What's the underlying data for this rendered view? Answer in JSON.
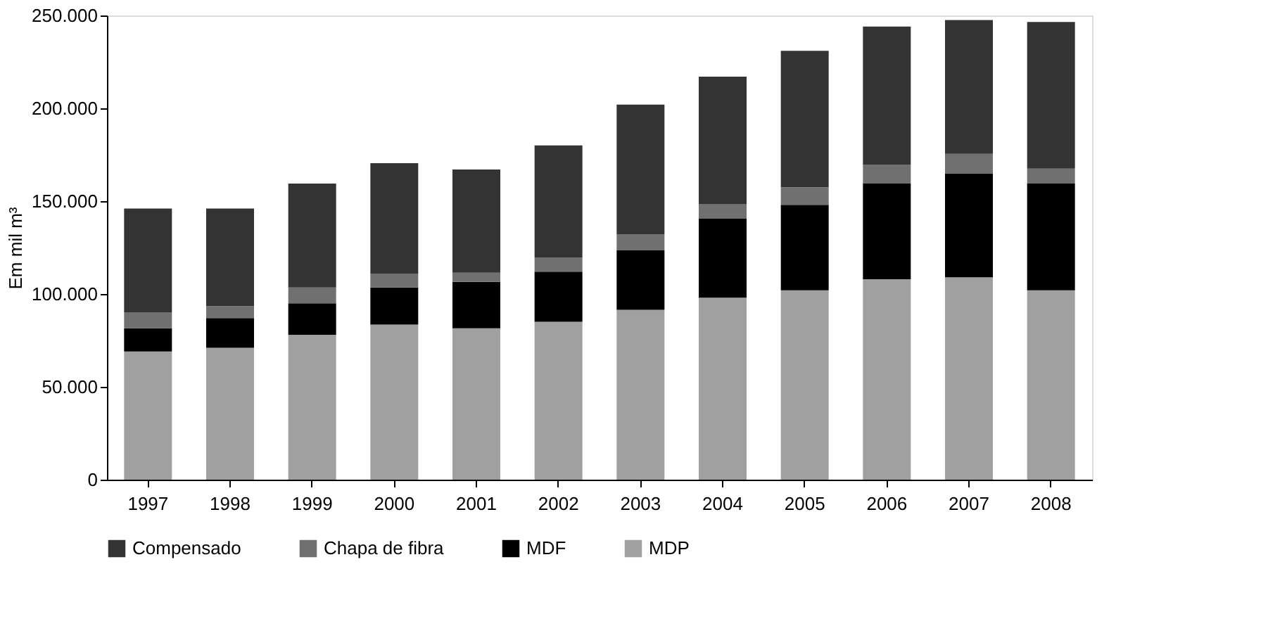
{
  "chart_data": {
    "type": "bar",
    "stacked": true,
    "ylabel": "Em mil m³",
    "categories": [
      "1997",
      "1998",
      "1999",
      "2000",
      "2001",
      "2002",
      "2003",
      "2004",
      "2005",
      "2006",
      "2007",
      "2008"
    ],
    "series": [
      {
        "name": "MDP",
        "color": "#a0a0a0",
        "values": [
          69000,
          71000,
          78000,
          83500,
          81500,
          85000,
          91500,
          98000,
          102000,
          108000,
          109000,
          102000
        ]
      },
      {
        "name": "MDF",
        "color": "#000000",
        "values": [
          12500,
          16000,
          17000,
          20000,
          25000,
          27000,
          32000,
          42500,
          46000,
          51500,
          56000,
          57500
        ]
      },
      {
        "name": "Chapa de fibra",
        "color": "#707070",
        "values": [
          8500,
          6500,
          8500,
          7500,
          5000,
          7500,
          8500,
          8000,
          9500,
          10000,
          10500,
          8000
        ]
      },
      {
        "name": "Compensado",
        "color": "#333333",
        "values": [
          56000,
          52500,
          56000,
          59500,
          55500,
          60500,
          70000,
          68500,
          73500,
          74500,
          72000,
          79000
        ]
      }
    ],
    "ylim": [
      0,
      250000
    ],
    "yticks": [
      0,
      {
        "value": 50000,
        "label": "50.000"
      },
      {
        "value": 100000,
        "label": "100.000"
      },
      {
        "value": 150000,
        "label": "150.000"
      },
      {
        "value": 200000,
        "label": "200.000"
      },
      {
        "value": 250000,
        "label": "250.000"
      }
    ],
    "grid": false,
    "legend": "bottom"
  }
}
